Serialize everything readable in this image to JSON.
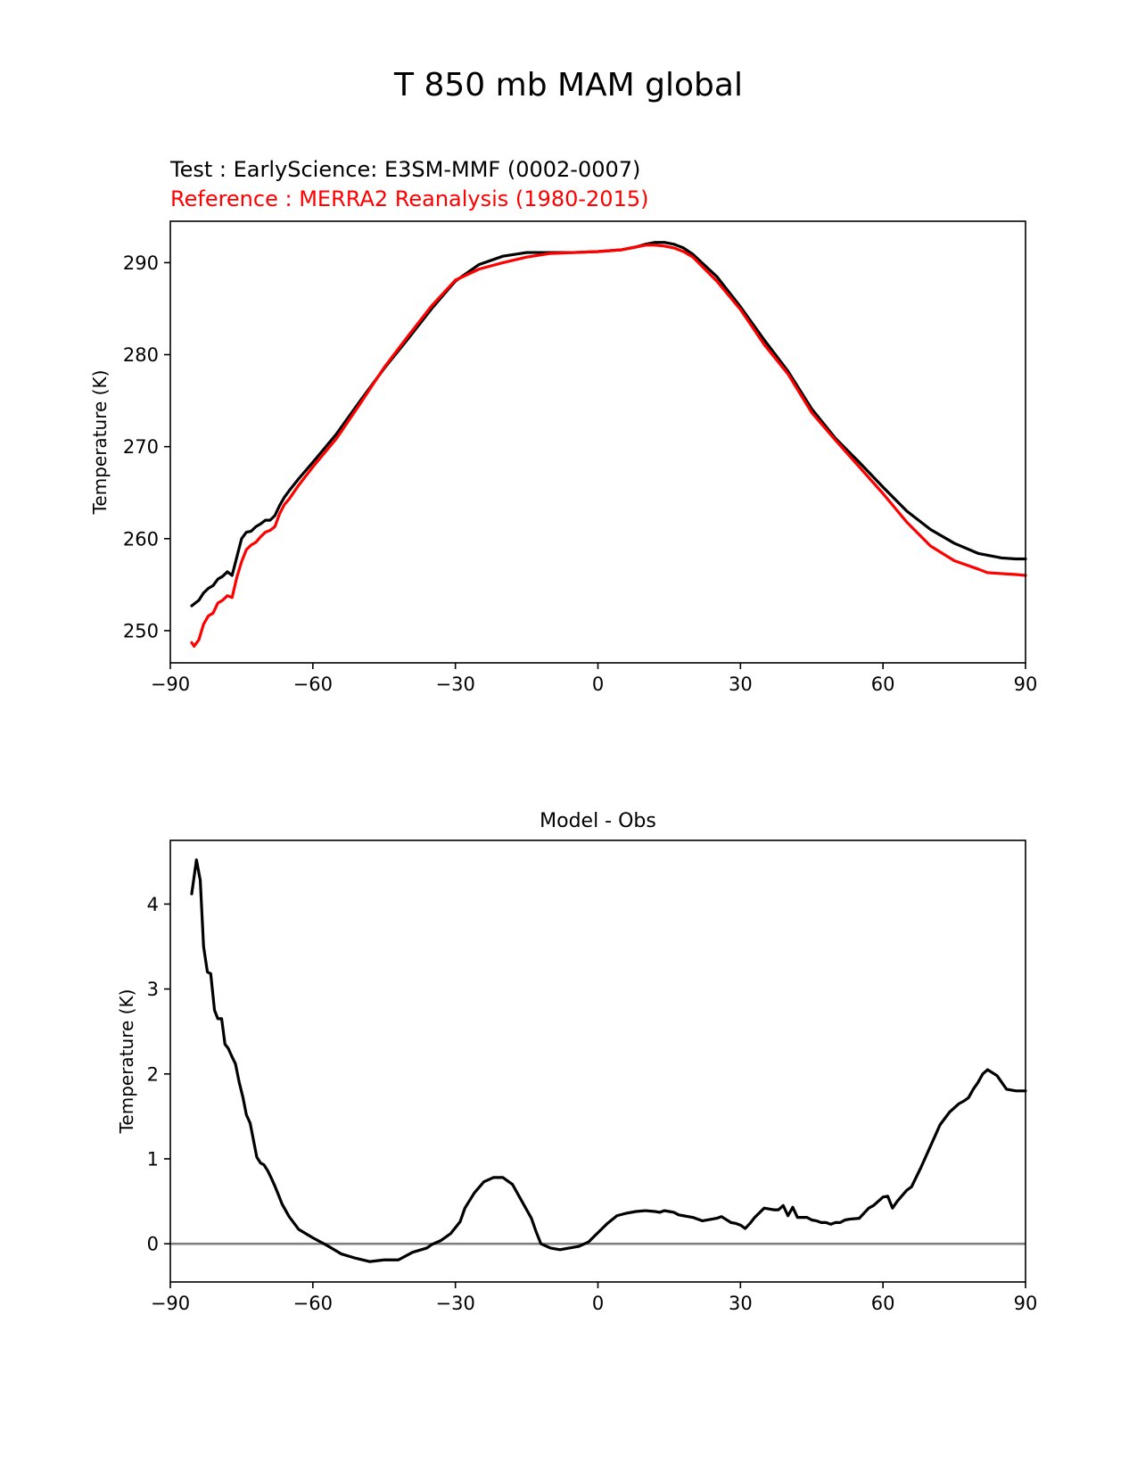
{
  "figure": {
    "title": "T 850 mb MAM global"
  },
  "chart_data": [
    {
      "type": "line",
      "legend": {
        "test": "Test : EarlyScience: E3SM-MMF (0002-0007)",
        "reference": "Reference : MERRA2 Reanalysis (1980-2015)"
      },
      "xlabel": "",
      "ylabel": "Temperature (K)",
      "xlim": [
        -90,
        90
      ],
      "ylim": [
        246.5,
        294.5
      ],
      "xticks": [
        -90,
        -60,
        -30,
        0,
        30,
        60,
        90
      ],
      "xtick_labels": [
        "−90",
        "−60",
        "−30",
        "0",
        "30",
        "60",
        "90"
      ],
      "yticks": [
        250,
        260,
        270,
        280,
        290
      ],
      "ytick_labels": [
        "250",
        "260",
        "270",
        "280",
        "290"
      ],
      "series": [
        {
          "name": "Test",
          "color": "#000000",
          "x": [
            -85.5,
            -85,
            -84,
            -83,
            -82,
            -81,
            -80,
            -79,
            -78,
            -77,
            -76,
            -75,
            -74,
            -73,
            -72,
            -71,
            -70,
            -69,
            -68,
            -67,
            -66,
            -65,
            -63,
            -60,
            -55,
            -50,
            -45,
            -40,
            -35,
            -30,
            -25,
            -20,
            -15,
            -10,
            -5,
            0,
            5,
            8,
            10,
            12,
            14,
            16,
            18,
            20,
            25,
            30,
            35,
            40,
            45,
            50,
            55,
            60,
            65,
            70,
            75,
            80,
            85,
            88,
            90
          ],
          "y": [
            252.7,
            252.9,
            253.3,
            254.1,
            254.6,
            254.9,
            255.6,
            255.9,
            256.4,
            256.0,
            258.0,
            260.0,
            260.7,
            260.8,
            261.3,
            261.6,
            262.0,
            262.0,
            262.5,
            263.6,
            264.5,
            265.2,
            266.5,
            268.3,
            271.4,
            275.0,
            278.5,
            281.7,
            285.0,
            288.0,
            289.8,
            290.7,
            291.1,
            291.1,
            291.1,
            291.2,
            291.4,
            291.7,
            292.0,
            292.2,
            292.2,
            292.0,
            291.6,
            290.9,
            288.5,
            285.2,
            281.6,
            278.2,
            274.1,
            270.9,
            268.3,
            265.6,
            263.0,
            261.0,
            259.5,
            258.4,
            257.9,
            257.8,
            257.8
          ]
        },
        {
          "name": "Reference",
          "color": "#ff0000",
          "x": [
            -85.5,
            -85,
            -84,
            -83,
            -82,
            -81,
            -80,
            -79,
            -78,
            -77,
            -76,
            -75,
            -74,
            -73,
            -72,
            -71,
            -70,
            -69,
            -68,
            -67,
            -66,
            -65,
            -63,
            -60,
            -55,
            -50,
            -45,
            -40,
            -35,
            -30,
            -25,
            -20,
            -15,
            -10,
            -5,
            0,
            5,
            8,
            10,
            12,
            14,
            16,
            18,
            20,
            25,
            30,
            35,
            40,
            45,
            50,
            55,
            60,
            65,
            70,
            75,
            80,
            82,
            85,
            88,
            90
          ],
          "y": [
            248.7,
            248.3,
            249.0,
            250.7,
            251.6,
            251.9,
            253.0,
            253.3,
            253.8,
            253.6,
            255.8,
            257.5,
            258.8,
            259.3,
            259.6,
            260.2,
            260.7,
            260.9,
            261.3,
            262.7,
            263.7,
            264.3,
            265.8,
            267.8,
            270.9,
            274.7,
            278.6,
            282.0,
            285.3,
            288.1,
            289.3,
            290.0,
            290.6,
            291.0,
            291.1,
            291.2,
            291.4,
            291.7,
            291.9,
            291.9,
            291.8,
            291.6,
            291.2,
            290.6,
            288.0,
            284.9,
            281.1,
            277.9,
            273.7,
            270.7,
            267.8,
            264.9,
            261.8,
            259.2,
            257.6,
            256.7,
            256.3,
            256.2,
            256.1,
            256.0
          ]
        }
      ]
    },
    {
      "type": "line",
      "title": "Model - Obs",
      "xlabel": "",
      "ylabel": "Temperature (K)",
      "xlim": [
        -90,
        90
      ],
      "ylim": [
        -0.45,
        4.75
      ],
      "xticks": [
        -90,
        -60,
        -30,
        0,
        30,
        60,
        90
      ],
      "xtick_labels": [
        "−90",
        "−60",
        "−30",
        "0",
        "30",
        "60",
        "90"
      ],
      "yticks": [
        0,
        1,
        2,
        3,
        4
      ],
      "ytick_labels": [
        "0",
        "1",
        "2",
        "3",
        "4"
      ],
      "reference_line": {
        "y": 0,
        "color": "#808080"
      },
      "series": [
        {
          "name": "Model - Obs",
          "color": "#000000",
          "x": [
            -85.5,
            -84.5,
            -83.7,
            -83,
            -82.2,
            -81.5,
            -80.7,
            -80,
            -79.2,
            -78.5,
            -77.8,
            -77,
            -76.3,
            -75.5,
            -74.7,
            -74,
            -73.2,
            -72.5,
            -71.8,
            -71,
            -70.3,
            -69.5,
            -68.8,
            -68,
            -67.2,
            -66.5,
            -65,
            -63,
            -60,
            -57,
            -54,
            -51,
            -48,
            -45,
            -42,
            -39,
            -36,
            -35,
            -33,
            -31,
            -29,
            -28,
            -26,
            -24,
            -22,
            -20,
            -18,
            -16,
            -14,
            -13,
            -12,
            -10,
            -8,
            -6,
            -4,
            -2,
            0,
            2,
            4,
            6,
            8,
            10,
            12,
            13,
            14,
            15,
            16,
            17,
            18,
            20,
            22,
            24,
            25,
            26,
            28,
            29,
            30,
            31,
            32,
            33,
            35,
            37,
            38,
            39,
            40,
            41,
            42,
            43,
            44,
            45,
            46,
            47,
            48,
            49,
            50,
            51,
            52,
            53,
            55,
            57,
            58,
            59,
            60,
            61,
            62,
            63,
            65,
            66,
            68,
            70,
            72,
            74,
            76,
            77,
            78,
            79,
            80,
            81,
            82,
            84,
            86,
            88,
            90
          ],
          "y": [
            4.12,
            4.52,
            4.28,
            3.5,
            3.2,
            3.18,
            2.75,
            2.65,
            2.65,
            2.35,
            2.3,
            2.2,
            2.12,
            1.9,
            1.72,
            1.52,
            1.42,
            1.22,
            1.02,
            0.95,
            0.93,
            0.86,
            0.78,
            0.68,
            0.57,
            0.47,
            0.32,
            0.17,
            0.07,
            -0.02,
            -0.12,
            -0.17,
            -0.21,
            -0.19,
            -0.19,
            -0.1,
            -0.05,
            -0.01,
            0.04,
            0.12,
            0.26,
            0.42,
            0.6,
            0.73,
            0.78,
            0.78,
            0.7,
            0.5,
            0.3,
            0.14,
            0.0,
            -0.05,
            -0.07,
            -0.05,
            -0.03,
            0.02,
            0.13,
            0.24,
            0.33,
            0.36,
            0.38,
            0.39,
            0.38,
            0.37,
            0.39,
            0.38,
            0.37,
            0.34,
            0.33,
            0.31,
            0.27,
            0.29,
            0.3,
            0.32,
            0.25,
            0.24,
            0.22,
            0.18,
            0.24,
            0.31,
            0.42,
            0.4,
            0.4,
            0.45,
            0.33,
            0.43,
            0.31,
            0.31,
            0.31,
            0.28,
            0.27,
            0.25,
            0.25,
            0.23,
            0.25,
            0.25,
            0.28,
            0.29,
            0.3,
            0.42,
            0.45,
            0.5,
            0.55,
            0.56,
            0.42,
            0.5,
            0.63,
            0.67,
            0.9,
            1.15,
            1.4,
            1.55,
            1.65,
            1.68,
            1.72,
            1.82,
            1.9,
            2.0,
            2.05,
            1.98,
            1.82,
            1.8,
            1.8
          ]
        }
      ]
    }
  ]
}
